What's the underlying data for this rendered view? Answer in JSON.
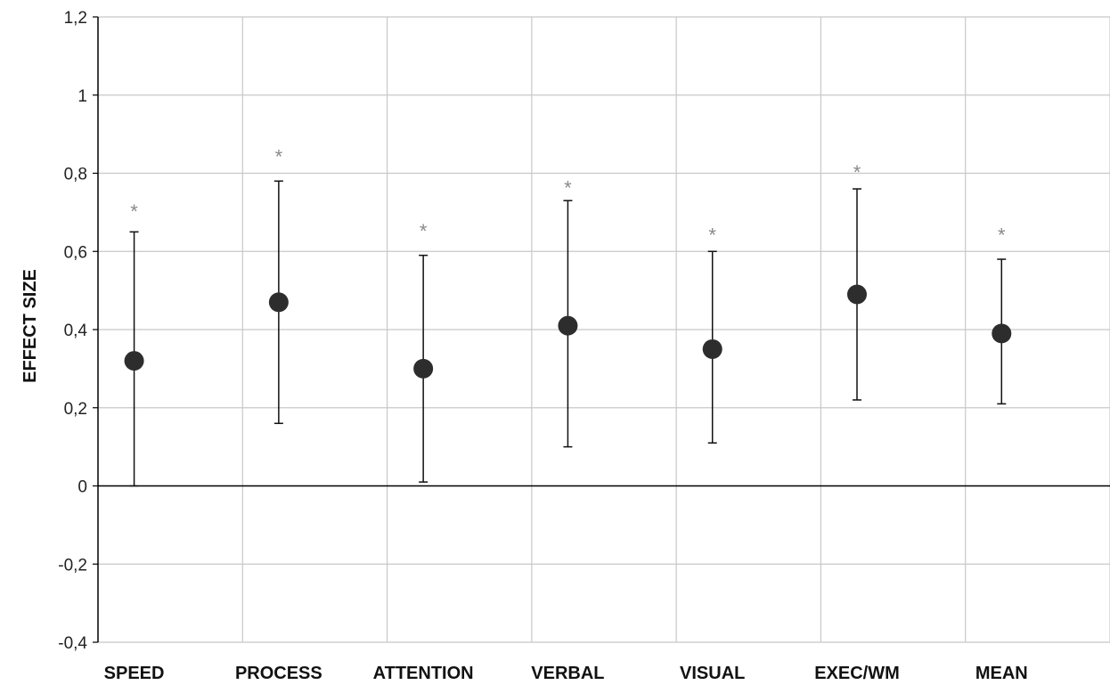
{
  "chart_data": {
    "type": "scatter",
    "title": "",
    "xlabel": "",
    "ylabel": "EFFECT SIZE",
    "ylim": [
      -0.4,
      1.2
    ],
    "yticks": [
      {
        "value": -0.4,
        "label": "-0,4"
      },
      {
        "value": -0.2,
        "label": "-0,2"
      },
      {
        "value": 0,
        "label": "0"
      },
      {
        "value": 0.2,
        "label": "0,2"
      },
      {
        "value": 0.4,
        "label": "0,4"
      },
      {
        "value": 0.6,
        "label": "0,6"
      },
      {
        "value": 0.8,
        "label": "0,8"
      },
      {
        "value": 1,
        "label": "1"
      },
      {
        "value": 1.2,
        "label": "1,2"
      }
    ],
    "grid": true,
    "legend": "none",
    "categories": [
      "SPEED",
      "PROCESS",
      "ATTENTION",
      "VERBAL",
      "VISUAL",
      "EXEC/WM",
      "MEAN"
    ],
    "points": [
      {
        "category": "SPEED",
        "value": 0.32,
        "ci_low": 0.0,
        "ci_high": 0.65,
        "marker": "*",
        "marker_y": 0.71
      },
      {
        "category": "PROCESS",
        "value": 0.47,
        "ci_low": 0.16,
        "ci_high": 0.78,
        "marker": "*",
        "marker_y": 0.85
      },
      {
        "category": "ATTENTION",
        "value": 0.3,
        "ci_low": 0.01,
        "ci_high": 0.59,
        "marker": "*",
        "marker_y": 0.66
      },
      {
        "category": "VERBAL",
        "value": 0.41,
        "ci_low": 0.1,
        "ci_high": 0.73,
        "marker": "*",
        "marker_y": 0.77
      },
      {
        "category": "VISUAL",
        "value": 0.35,
        "ci_low": 0.11,
        "ci_high": 0.6,
        "marker": "*",
        "marker_y": 0.65
      },
      {
        "category": "EXEC/WM",
        "value": 0.49,
        "ci_low": 0.22,
        "ci_high": 0.76,
        "marker": "*",
        "marker_y": 0.81
      },
      {
        "category": "MEAN",
        "value": 0.39,
        "ci_low": 0.21,
        "ci_high": 0.58,
        "marker": "*",
        "marker_y": 0.65
      }
    ],
    "colors": {
      "grid": "#c8c8c8",
      "axis": "#000000",
      "point": "#2d2d2d",
      "errorbar": "#111111",
      "marker": "#8a8a8a"
    }
  }
}
